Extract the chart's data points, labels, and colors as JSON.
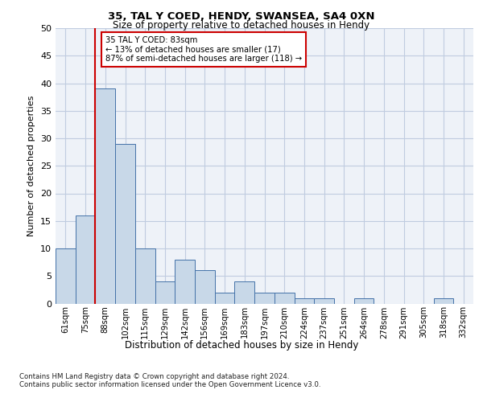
{
  "title1": "35, TAL Y COED, HENDY, SWANSEA, SA4 0XN",
  "title2": "Size of property relative to detached houses in Hendy",
  "xlabel": "Distribution of detached houses by size in Hendy",
  "ylabel": "Number of detached properties",
  "categories": [
    "61sqm",
    "75sqm",
    "88sqm",
    "102sqm",
    "115sqm",
    "129sqm",
    "142sqm",
    "156sqm",
    "169sqm",
    "183sqm",
    "197sqm",
    "210sqm",
    "224sqm",
    "237sqm",
    "251sqm",
    "264sqm",
    "278sqm",
    "291sqm",
    "305sqm",
    "318sqm",
    "332sqm"
  ],
  "values": [
    10,
    16,
    39,
    29,
    10,
    4,
    8,
    6,
    2,
    4,
    2,
    2,
    1,
    1,
    0,
    1,
    0,
    0,
    0,
    1,
    0
  ],
  "bar_color": "#c8d8e8",
  "bar_edge_color": "#4472a8",
  "marker_line_color": "#cc0000",
  "annotation_text": "35 TAL Y COED: 83sqm\n← 13% of detached houses are smaller (17)\n87% of semi-detached houses are larger (118) →",
  "annotation_box_color": "#cc0000",
  "ylim": [
    0,
    50
  ],
  "yticks": [
    0,
    5,
    10,
    15,
    20,
    25,
    30,
    35,
    40,
    45,
    50
  ],
  "grid_color": "#c0cce0",
  "footer1": "Contains HM Land Registry data © Crown copyright and database right 2024.",
  "footer2": "Contains public sector information licensed under the Open Government Licence v3.0.",
  "bg_color": "#eef2f8"
}
